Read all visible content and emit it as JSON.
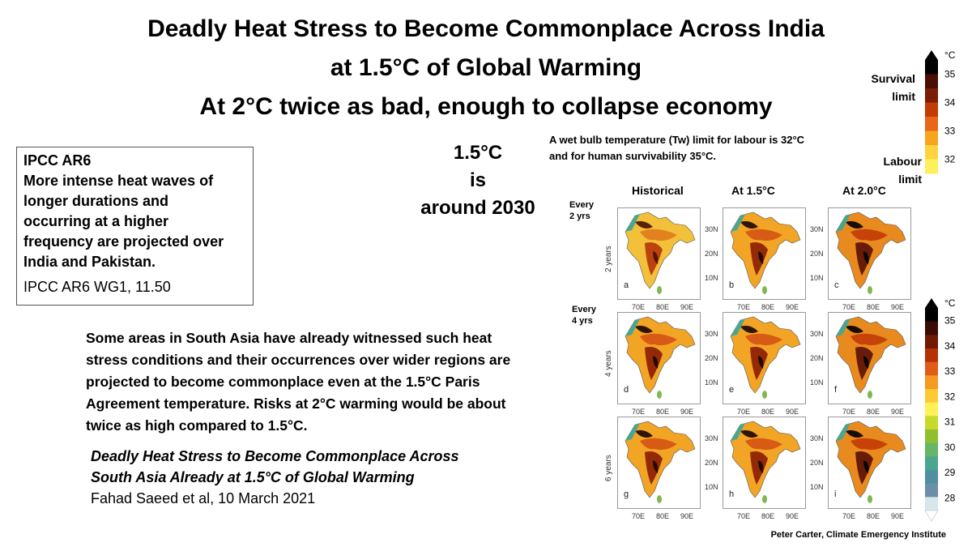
{
  "title": {
    "line1": "Deadly Heat Stress to Become Commonplace Across India",
    "line2": "at 1.5°C of Global Warming",
    "line3": "At 2°C twice as bad, enough to collapse economy"
  },
  "ipcc_box": {
    "heading_lines": [
      "IPCC AR6",
      "More intense heat waves of",
      "longer durations and",
      "occurring at a higher",
      "frequency are projected over",
      "India and Pakistan."
    ],
    "reference": "IPCC  AR6  WG1, 11.50"
  },
  "timing": {
    "line1": "1.5°C",
    "line2": "is",
    "line3": "around 2030"
  },
  "tw_note": {
    "line1": "A wet bulb temperature (Tw) limit for labour is 32°C",
    "line2": "and for  human survivability 35°C."
  },
  "paragraph": {
    "lines": [
      "Some areas in South Asia  have already witnessed such heat",
      "stress conditions and their occurrences over wider regions are",
      "projected to become commonplace even at the 1.5°C Paris",
      "Agreement temperature.  Risks at 2°C warming would be about",
      "twice as high compared to 1.5°C."
    ]
  },
  "citation": {
    "title_line1": "Deadly Heat Stress  to Become Commonplace Across",
    "title_line2": "South Asia Already at 1.5°C of Global Warming",
    "author": "Fahad Saeed et al, 10 March 2021"
  },
  "credit": "Peter Carter, Climate Emergency Institute",
  "maps": {
    "columns": [
      "Historical",
      "At 1.5°C",
      "At 2.0°C"
    ],
    "row_notes": [
      [
        "Every",
        "2 yrs"
      ],
      [
        "Every",
        "4 yrs"
      ]
    ],
    "row_axis_labels": [
      "2 years",
      "4 years",
      "6 years"
    ],
    "lat_labels": [
      "30N",
      "20N",
      "10N"
    ],
    "lon_labels": [
      "70E",
      "80E",
      "90E"
    ],
    "panel_letters": [
      "a",
      "b",
      "c",
      "d",
      "e",
      "f",
      "g",
      "h",
      "i"
    ]
  },
  "top_colorbar": {
    "unit": "°C",
    "ticks": [
      "35",
      "34",
      "33",
      "32"
    ],
    "survival_label": [
      "Survival",
      "limit"
    ],
    "labour_label": [
      "Labour",
      "limit"
    ],
    "colors": [
      "#000000",
      "#4a0f04",
      "#7a1e05",
      "#c23a06",
      "#e8661a",
      "#f7a41f",
      "#ffd23f",
      "#ffef5c"
    ]
  },
  "bottom_colorbar": {
    "unit": "°C",
    "ticks": [
      "35",
      "34",
      "33",
      "32",
      "31",
      "30",
      "29",
      "28"
    ],
    "colors": [
      "#000000",
      "#3a0b04",
      "#6e1a05",
      "#b53207",
      "#e05d17",
      "#f59a22",
      "#ffc933",
      "#fff157",
      "#c9d92a",
      "#8fbf2e",
      "#67b56a",
      "#4aa68f",
      "#4e8fa0",
      "#6b8fa8",
      "#d6e6ea"
    ]
  }
}
